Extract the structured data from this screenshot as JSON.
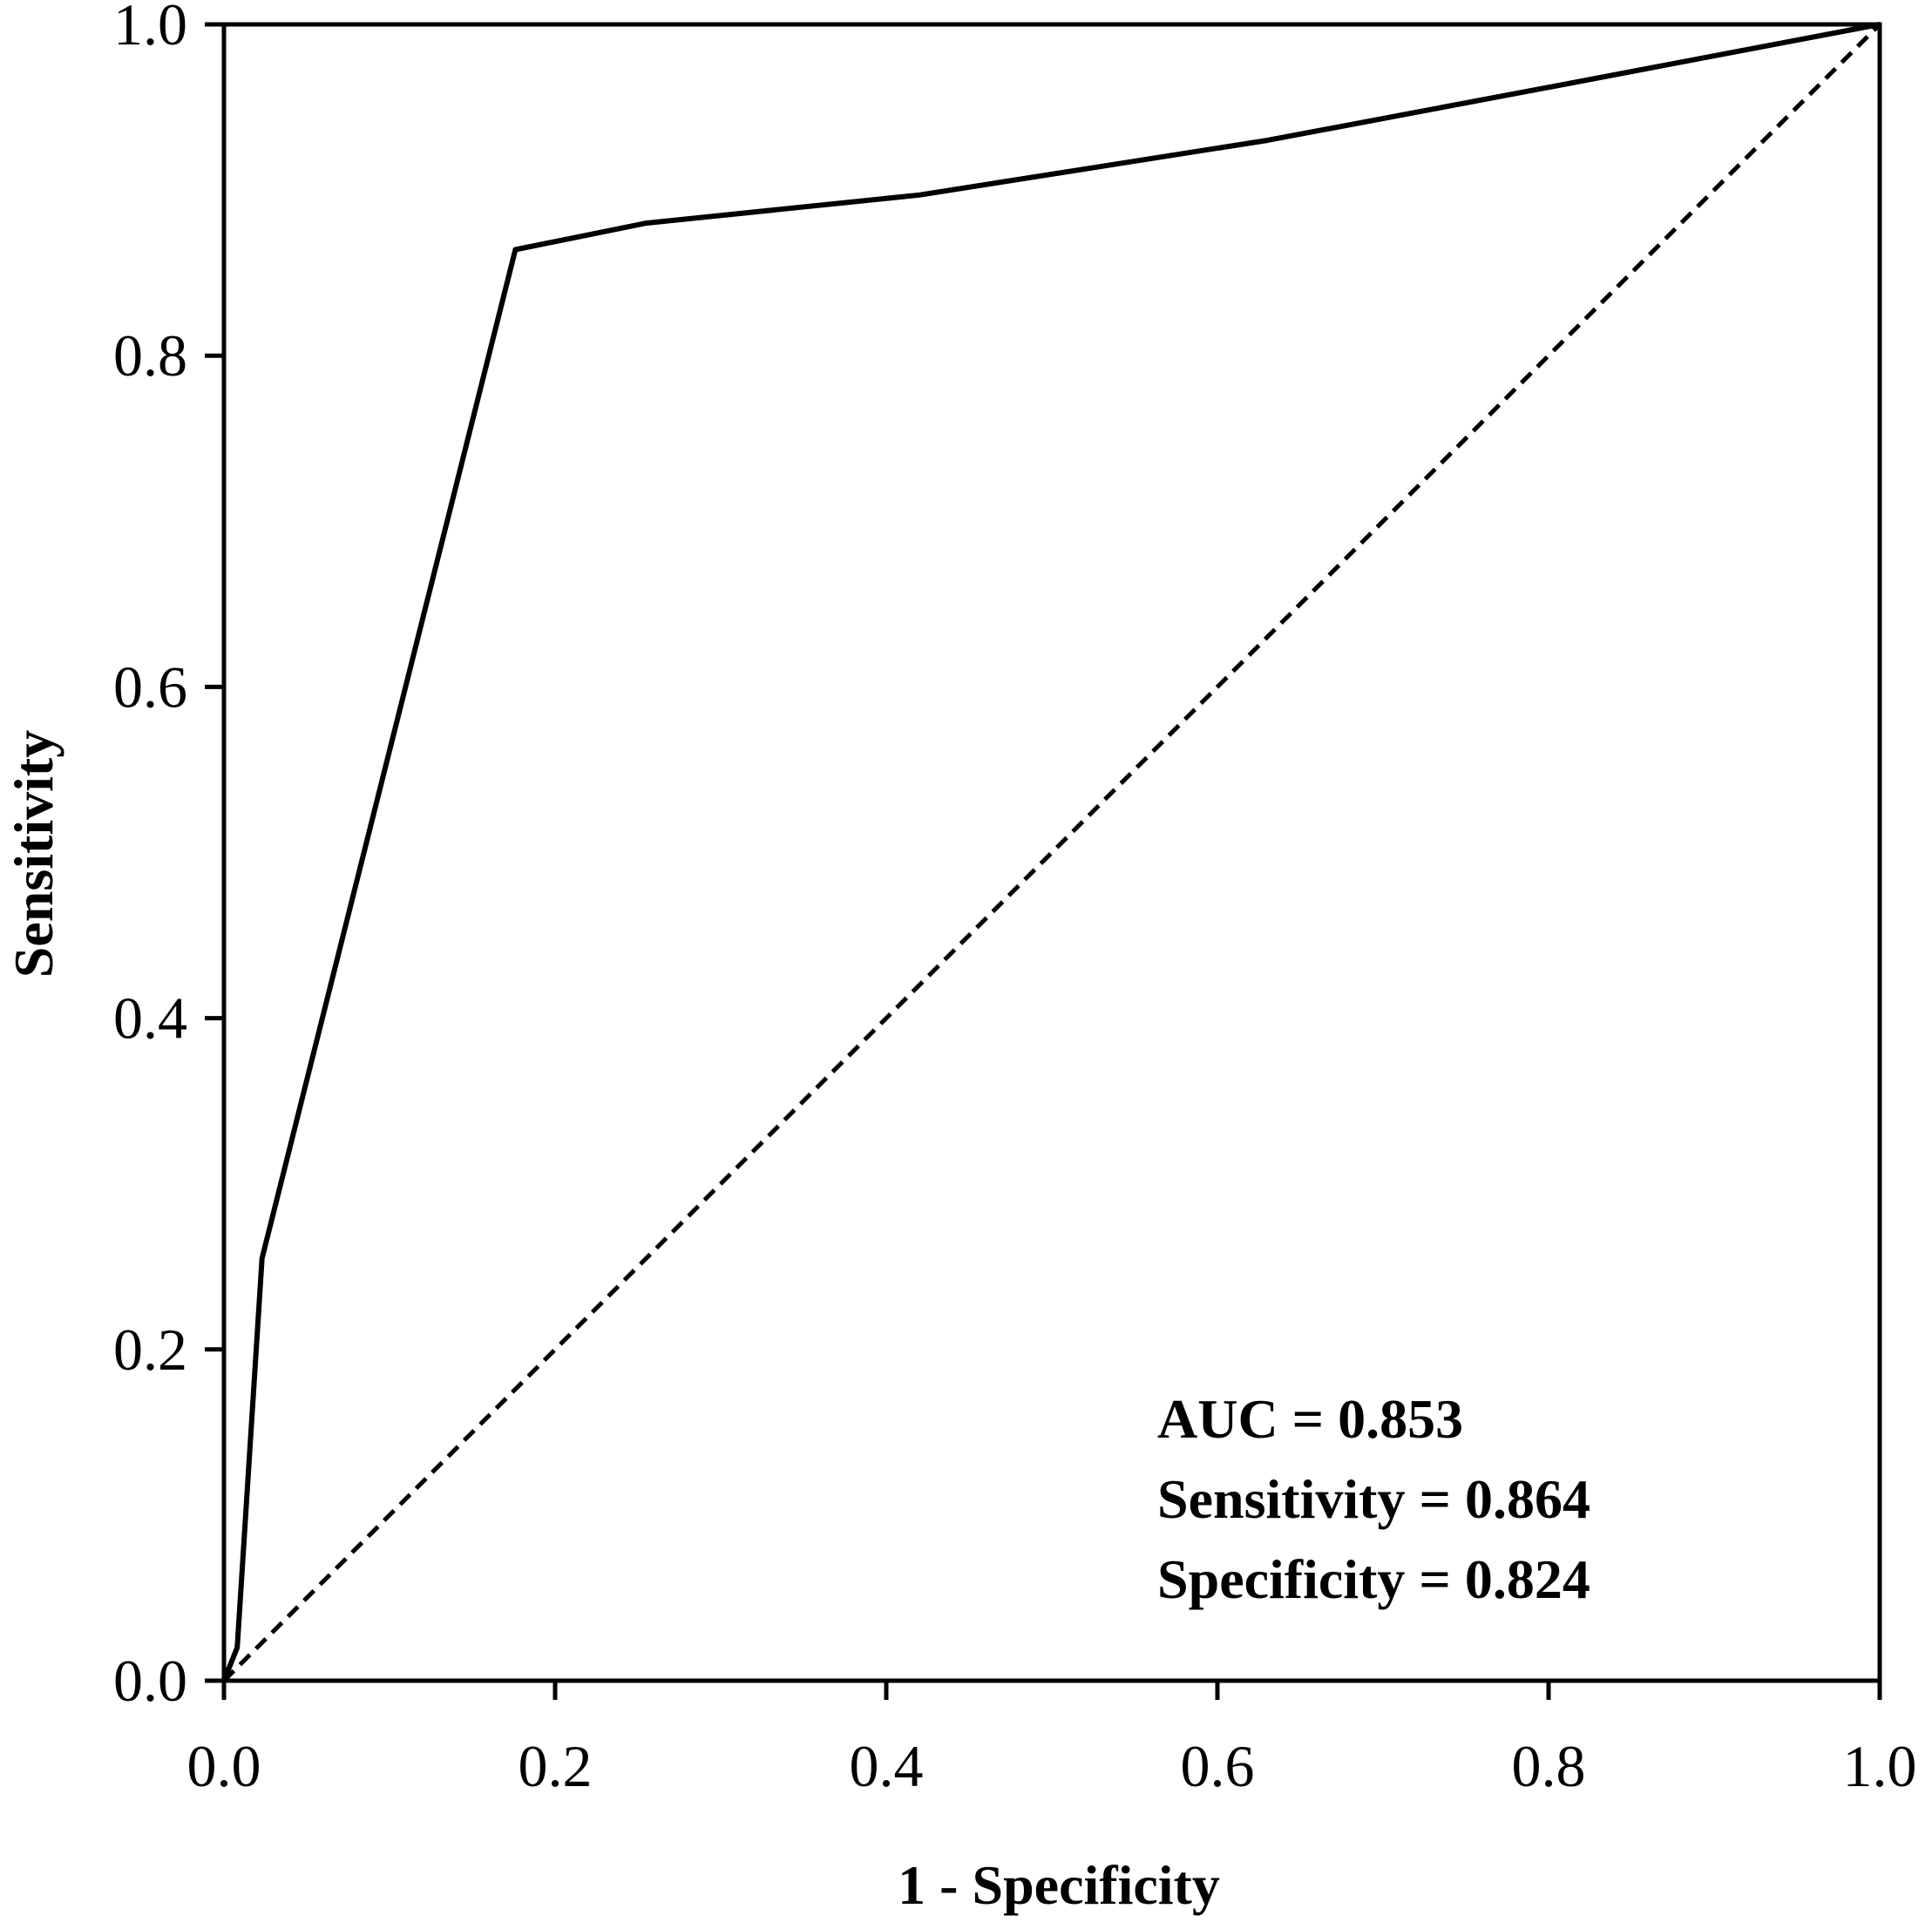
{
  "chart_data": {
    "type": "line",
    "title": "",
    "xlabel": "1 - Specificity",
    "ylabel": "Sensitivity",
    "xlim": [
      0,
      1
    ],
    "ylim": [
      0,
      1
    ],
    "xticks": [
      "0.0",
      "0.2",
      "0.4",
      "0.6",
      "0.8",
      "1.0"
    ],
    "yticks": [
      "0.0",
      "0.2",
      "0.4",
      "0.6",
      "0.8",
      "1.0"
    ],
    "grid": false,
    "legend": "none",
    "series": [
      {
        "style": "solid",
        "color": "#000000",
        "x": [
          0.0,
          0.008,
          0.023,
          0.176,
          0.255,
          0.42,
          0.63,
          0.8,
          1.0
        ],
        "y": [
          0.0,
          0.02,
          0.255,
          0.864,
          0.88,
          0.897,
          0.93,
          0.962,
          1.0
        ]
      },
      {
        "style": "dashed",
        "color": "#000000",
        "x": [
          0.0,
          1.0
        ],
        "y": [
          0.0,
          1.0
        ]
      }
    ],
    "annotations": [
      "AUC = 0.853",
      "Sensitivity = 0.864",
      "Specificity = 0.824"
    ]
  }
}
